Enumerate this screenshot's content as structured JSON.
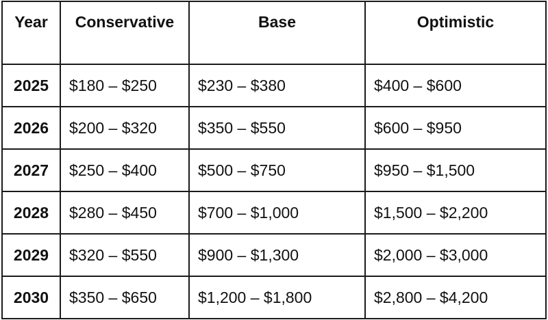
{
  "table": {
    "headers": [
      "Year",
      "Conservative",
      "Base",
      "Optimistic"
    ],
    "rows": [
      {
        "year": "2025",
        "conservative": "$180 – $250",
        "base": "$230 – $380",
        "optimistic": "$400 – $600"
      },
      {
        "year": "2026",
        "conservative": "$200 – $320",
        "base": "$350 – $550",
        "optimistic": "$600 – $950"
      },
      {
        "year": "2027",
        "conservative": "$250 – $400",
        "base": "$500 – $750",
        "optimistic": "$950 – $1,500"
      },
      {
        "year": "2028",
        "conservative": "$280 – $450",
        "base": "$700 – $1,000",
        "optimistic": "$1,500 – $2,200"
      },
      {
        "year": "2029",
        "conservative": "$320 – $550",
        "base": "$900 – $1,300",
        "optimistic": "$2,000 – $3,000"
      },
      {
        "year": "2030",
        "conservative": "$350 – $650",
        "base": "$1,200 – $1,800",
        "optimistic": "$2,800 – $4,200"
      }
    ]
  }
}
